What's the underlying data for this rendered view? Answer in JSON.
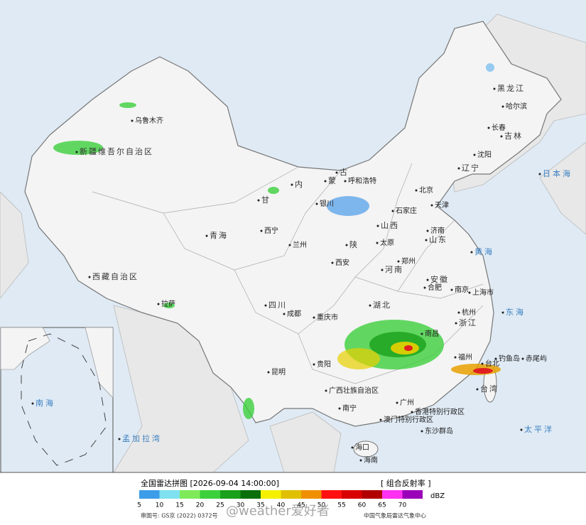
{
  "labels": [
    "乌鲁木齐",
    "新疆维吾尔自治区",
    "西藏自治区",
    "拉萨",
    "青海",
    "西宁",
    "甘",
    "内",
    "蒙",
    "古",
    "呼和浩特",
    "银川",
    "兰州",
    "陕",
    "西安",
    "河南",
    "山西",
    "太原",
    "石家庄",
    "北京",
    "天津",
    "山东",
    "济南",
    "郑州",
    "湖北",
    "安徽",
    "合肥",
    "南京",
    "上海市",
    "浙江",
    "杭州",
    "福州",
    "台湾",
    "台北",
    "南昌",
    "四川",
    "成都",
    "重庆市",
    "贵阳",
    "昆明",
    "广西壮族自治区",
    "南宁",
    "广州",
    "香港特别行政区",
    "澳门特别行政区",
    "海口",
    "海南",
    "黑龙江",
    "哈尔滨",
    "长春",
    "吉林",
    "沈阳",
    "辽宁",
    "日本海",
    "黄海",
    "东海",
    "太平洋",
    "孟加拉湾",
    "钓鱼岛",
    "赤尾屿",
    "东沙群岛",
    "南海"
  ],
  "footer": {
    "title": "全国雷达拼图 [2026-09-04 14:00:00]",
    "product": "[ 组合反射率 ]",
    "legend": {
      "values": [
        5,
        10,
        15,
        20,
        25,
        30,
        35,
        40,
        45,
        50,
        55,
        60,
        65,
        70
      ],
      "colors": [
        "#3d9de8",
        "#7fe0f0",
        "#7eea5a",
        "#3cd03c",
        "#1aa01a",
        "#0b700b",
        "#f5f000",
        "#e0c000",
        "#f09000",
        "#ff1010",
        "#d80000",
        "#b00000",
        "#ff30f0",
        "#9a00b8"
      ],
      "unit": "dBZ"
    },
    "approval": "审图号: GS京 (2022) 0372号",
    "issuer": "中国气象局雷达气象中心",
    "watermark": "@weather爱好者"
  }
}
